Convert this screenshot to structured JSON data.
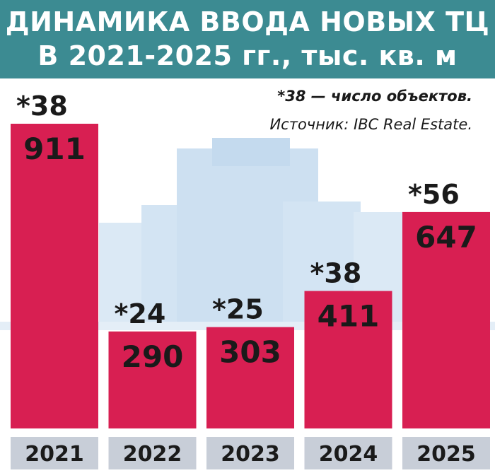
{
  "header": {
    "title_line1": "ДИНАМИКА ВВОДА НОВЫХ ТЦ",
    "title_line2": "В 2021-2025 гг., тыс. кв. м"
  },
  "notes": {
    "footnote": "*38 — число объектов.",
    "source": "Источник: IBC Real Estate."
  },
  "colors": {
    "header_bg": "#3c8b92",
    "bar": "#d81f52",
    "year_bg": "#c8ced8",
    "background_image_tint": "#cfe3f2"
  },
  "chart_data": {
    "type": "bar",
    "title": "ДИНАМИКА ВВОДА НОВЫХ ТЦ В 2021-2025 гг., тыс. кв. м",
    "categories": [
      "2021",
      "2022",
      "2023",
      "2024",
      "2025"
    ],
    "values": [
      911,
      290,
      303,
      411,
      647
    ],
    "value_labels": [
      "911",
      "290",
      "303",
      "411",
      "647"
    ],
    "count_labels": [
      "*38",
      "*24",
      "*25",
      "*38",
      "*56"
    ],
    "units": "тыс. кв. м",
    "ylim": [
      0,
      1000
    ],
    "grid": false,
    "legend": "none"
  }
}
